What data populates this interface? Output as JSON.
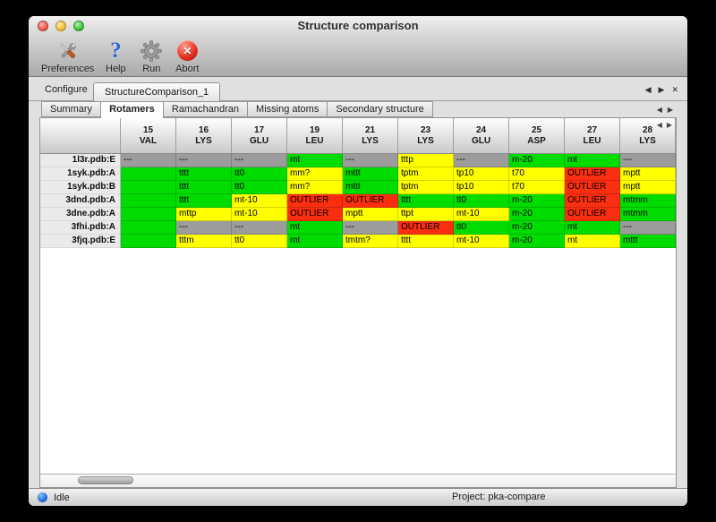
{
  "window": {
    "title": "Structure comparison"
  },
  "toolbar": {
    "items": [
      {
        "label": "Preferences",
        "icon": "preferences-icon"
      },
      {
        "label": "Help",
        "icon": "help-icon"
      },
      {
        "label": "Run",
        "icon": "run-icon"
      },
      {
        "label": "Abort",
        "icon": "abort-icon"
      }
    ]
  },
  "configure": {
    "label": "Configure",
    "active_configuration": "StructureComparison_1",
    "nav_prev": "◀",
    "nav_next": "▶",
    "nav_close": "✕"
  },
  "tabs": {
    "labels": [
      "Summary",
      "Rotamers",
      "Ramachandran",
      "Missing atoms",
      "Secondary structure"
    ],
    "active": "Rotamers",
    "nav_prev": "◀",
    "nav_next": "▶"
  },
  "table": {
    "colors": {
      "green": "#00dc00",
      "yellow": "#ffff00",
      "red": "#fb2e12",
      "gray": "#9c9c9c"
    },
    "header_nav_prev": "◀",
    "header_nav_next": "▶",
    "columns": [
      {
        "num": "15",
        "res": "VAL"
      },
      {
        "num": "16",
        "res": "LYS"
      },
      {
        "num": "17",
        "res": "GLU"
      },
      {
        "num": "19",
        "res": "LEU"
      },
      {
        "num": "21",
        "res": "LYS"
      },
      {
        "num": "23",
        "res": "LYS"
      },
      {
        "num": "24",
        "res": "GLU"
      },
      {
        "num": "25",
        "res": "ASP"
      },
      {
        "num": "27",
        "res": "LEU"
      },
      {
        "num": "28",
        "res": "LYS"
      }
    ],
    "rows": [
      {
        "label": "1l3r.pdb:E",
        "cells": [
          {
            "t": "---",
            "c": "gray"
          },
          {
            "t": "---",
            "c": "gray"
          },
          {
            "t": "---",
            "c": "gray"
          },
          {
            "t": "mt",
            "c": "green"
          },
          {
            "t": "---",
            "c": "gray"
          },
          {
            "t": "tttp",
            "c": "yellow"
          },
          {
            "t": "---",
            "c": "gray"
          },
          {
            "t": "m-20",
            "c": "green"
          },
          {
            "t": "mt",
            "c": "green"
          },
          {
            "t": "---",
            "c": "gray"
          }
        ]
      },
      {
        "label": "1syk.pdb:A",
        "cells": [
          {
            "t": "",
            "c": "green"
          },
          {
            "t": "tttt",
            "c": "green"
          },
          {
            "t": "tt0",
            "c": "green"
          },
          {
            "t": "mm?",
            "c": "yellow"
          },
          {
            "t": "mttt",
            "c": "green"
          },
          {
            "t": "tptm",
            "c": "yellow"
          },
          {
            "t": "tp10",
            "c": "yellow"
          },
          {
            "t": "t70",
            "c": "yellow"
          },
          {
            "t": "OUTLIER",
            "c": "red"
          },
          {
            "t": "mptt",
            "c": "yellow"
          }
        ]
      },
      {
        "label": "1syk.pdb:B",
        "cells": [
          {
            "t": "",
            "c": "green"
          },
          {
            "t": "tttt",
            "c": "green"
          },
          {
            "t": "tt0",
            "c": "green"
          },
          {
            "t": "mm?",
            "c": "yellow"
          },
          {
            "t": "mttt",
            "c": "green"
          },
          {
            "t": "tptm",
            "c": "yellow"
          },
          {
            "t": "tp10",
            "c": "yellow"
          },
          {
            "t": "t70",
            "c": "yellow"
          },
          {
            "t": "OUTLIER",
            "c": "red"
          },
          {
            "t": "mptt",
            "c": "yellow"
          }
        ]
      },
      {
        "label": "3dnd.pdb:A",
        "cells": [
          {
            "t": "",
            "c": "green"
          },
          {
            "t": "tttt",
            "c": "green"
          },
          {
            "t": "mt-10",
            "c": "yellow"
          },
          {
            "t": "OUTLIER",
            "c": "red"
          },
          {
            "t": "OUTLIER",
            "c": "red"
          },
          {
            "t": "tttt",
            "c": "green"
          },
          {
            "t": "tt0",
            "c": "green"
          },
          {
            "t": "m-20",
            "c": "green"
          },
          {
            "t": "OUTLIER",
            "c": "red"
          },
          {
            "t": "mtmm",
            "c": "green"
          }
        ]
      },
      {
        "label": "3dne.pdb:A",
        "cells": [
          {
            "t": "",
            "c": "green"
          },
          {
            "t": "mttp",
            "c": "yellow"
          },
          {
            "t": "mt-10",
            "c": "yellow"
          },
          {
            "t": "OUTLIER",
            "c": "red"
          },
          {
            "t": "mptt",
            "c": "yellow"
          },
          {
            "t": "ttpt",
            "c": "yellow"
          },
          {
            "t": "mt-10",
            "c": "yellow"
          },
          {
            "t": "m-20",
            "c": "green"
          },
          {
            "t": "OUTLIER",
            "c": "red"
          },
          {
            "t": "mtmm",
            "c": "green"
          }
        ]
      },
      {
        "label": "3fhi.pdb:A",
        "cells": [
          {
            "t": "",
            "c": "green"
          },
          {
            "t": "---",
            "c": "gray"
          },
          {
            "t": "---",
            "c": "gray"
          },
          {
            "t": "mt",
            "c": "green"
          },
          {
            "t": "---",
            "c": "gray"
          },
          {
            "t": "OUTLIER",
            "c": "red"
          },
          {
            "t": "tt0",
            "c": "green"
          },
          {
            "t": "m-20",
            "c": "green"
          },
          {
            "t": "mt",
            "c": "green"
          },
          {
            "t": "---",
            "c": "gray"
          }
        ]
      },
      {
        "label": "3fjq.pdb:E",
        "cells": [
          {
            "t": "",
            "c": "green"
          },
          {
            "t": "tttm",
            "c": "yellow"
          },
          {
            "t": "tt0",
            "c": "yellow"
          },
          {
            "t": "mt",
            "c": "green"
          },
          {
            "t": "tmtm?",
            "c": "yellow"
          },
          {
            "t": "tttt",
            "c": "yellow"
          },
          {
            "t": "mt-10",
            "c": "yellow"
          },
          {
            "t": "m-20",
            "c": "green"
          },
          {
            "t": "mt",
            "c": "yellow"
          },
          {
            "t": "mttt",
            "c": "green"
          }
        ]
      }
    ]
  },
  "status_bar": {
    "state": "Idle",
    "project": "Project: pka-compare"
  }
}
